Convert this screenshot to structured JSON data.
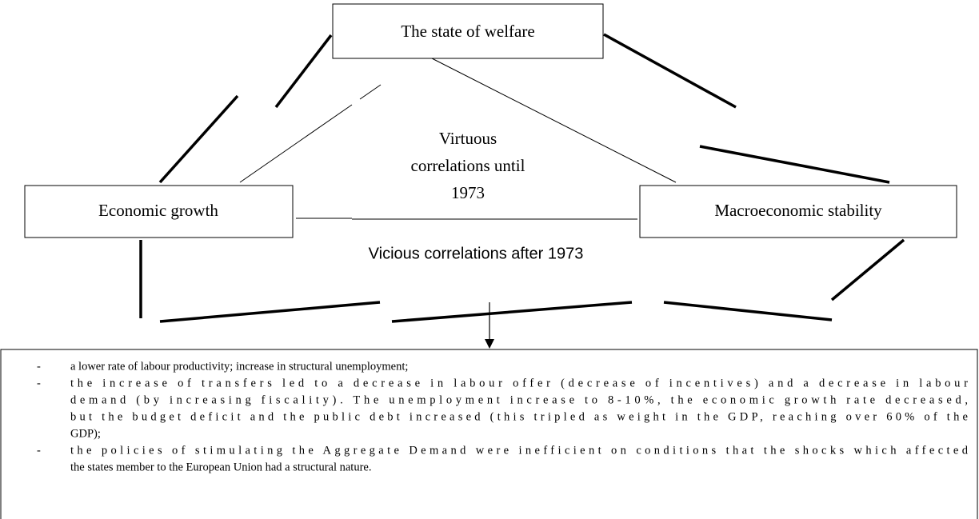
{
  "nodes": [
    {
      "label": "The state of welfare"
    },
    {
      "label": "Economic growth"
    },
    {
      "label": "Macroeconomic stability"
    }
  ],
  "virtuous_label": [
    "Virtuous",
    "correlations until",
    "1973"
  ],
  "vicious_label": "Vicious correlations after 1973",
  "consequences": [
    {
      "marker": "-",
      "lines": [
        "a lower rate of labour productivity; increase in structural unemployment;"
      ]
    },
    {
      "marker": "-",
      "lines": [
        "the increase of transfers led to a decrease in labour offer (decrease of incentives) and a decrease in labour",
        "demand (by increasing fiscality). The unemployment increase to 8-10%, the economic growth rate decreased,",
        "but the budget deficit and the public debt increased (this tripled as weight in the GDP, reaching over 60% of the",
        "GDP);"
      ]
    },
    {
      "marker": "-",
      "lines": [
        "the policies of stimulating the Aggregate Demand were inefficient on conditions that the shocks which affected",
        "the states member to the European Union had a structural nature."
      ]
    }
  ]
}
